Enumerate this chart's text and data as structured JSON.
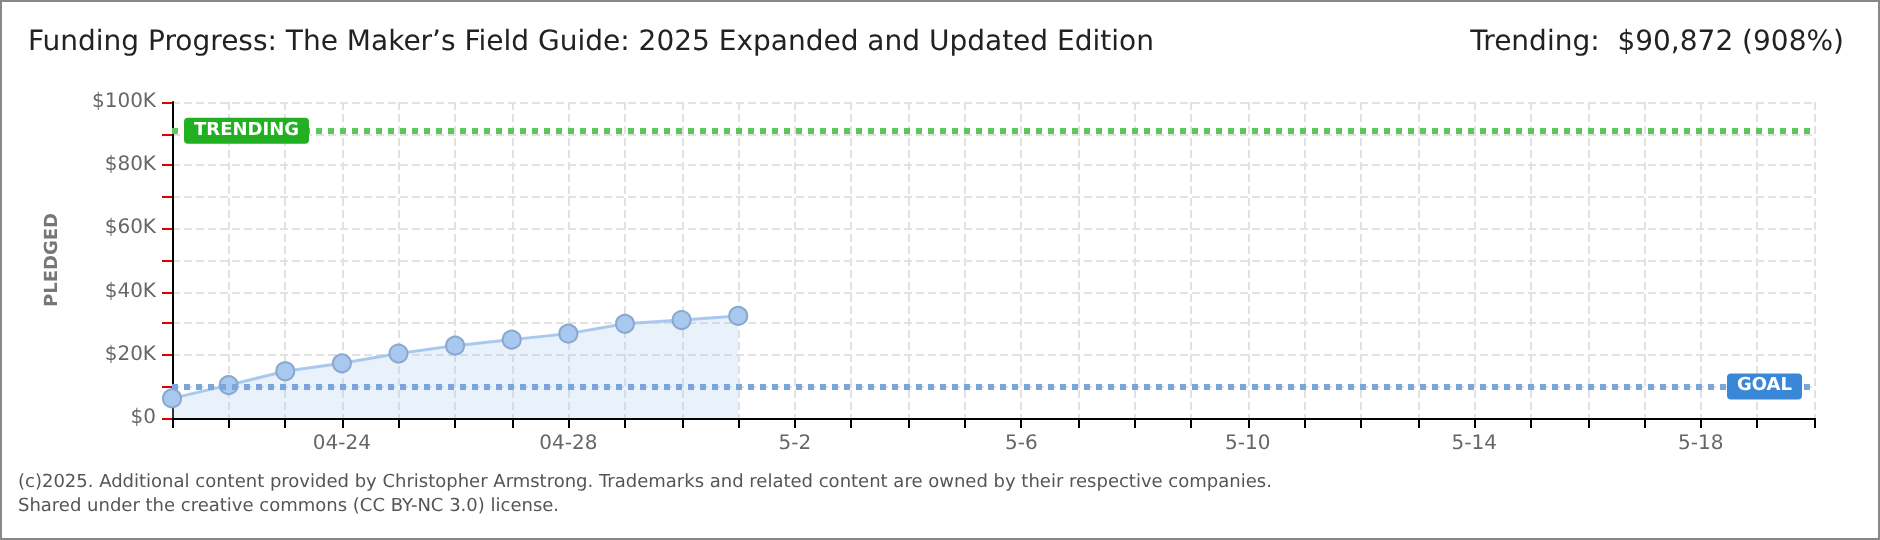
{
  "chart_data": {
    "type": "area",
    "title": "Funding Progress: The Maker’s Field Guide: 2025 Expanded and Updated Edition",
    "subtitle": "Trending:  $90,872 (908%)",
    "ylabel": "PLEDGED",
    "categories": [
      null,
      null,
      null,
      "04-24",
      null,
      null,
      null,
      "04-28",
      null,
      null,
      null,
      "5-2",
      null,
      null,
      null,
      "5-6",
      null,
      null,
      null,
      "5-10",
      null,
      null,
      null,
      "5-14",
      null,
      null,
      null,
      "5-18",
      null,
      null
    ],
    "series": [
      {
        "color": "#a9c8ef",
        "values": [
          6200,
          10400,
          14800,
          17300,
          20400,
          22900,
          24800,
          26700,
          29800,
          31000,
          32300,
          null,
          null,
          null,
          null,
          null,
          null,
          null,
          null,
          null,
          null,
          null,
          null,
          null,
          null,
          null,
          null,
          null,
          null,
          null
        ]
      }
    ],
    "ylim": [
      0,
      100000
    ],
    "yticks": [
      {
        "value": 0,
        "label": "$0"
      },
      {
        "value": 10000,
        "label": null
      },
      {
        "value": 20000,
        "label": "$20K"
      },
      {
        "value": 30000,
        "label": null
      },
      {
        "value": 40000,
        "label": "$40K"
      },
      {
        "value": 50000,
        "label": null
      },
      {
        "value": 60000,
        "label": "$60K"
      },
      {
        "value": 70000,
        "label": null
      },
      {
        "value": 80000,
        "label": "$80K"
      },
      {
        "value": 90000,
        "label": null
      },
      {
        "value": 100000,
        "label": "$100K"
      }
    ],
    "grid": true,
    "marker": "circle",
    "ref_lines": [
      {
        "axis": "y",
        "value": 90872,
        "label": "TRENDING",
        "color": "#5cc85c",
        "line_style": "dotted"
      },
      {
        "axis": "y",
        "value": 10000,
        "label": "GOAL",
        "color": "#7aa6dc",
        "line_style": "dotted"
      }
    ],
    "annotations": [
      "(c)2025. Additional content provided by Christopher Armstrong. Trademarks and related content are owned by their respective companies.",
      "Shared under the creative commons (CC BY-NC 3.0) license."
    ]
  }
}
